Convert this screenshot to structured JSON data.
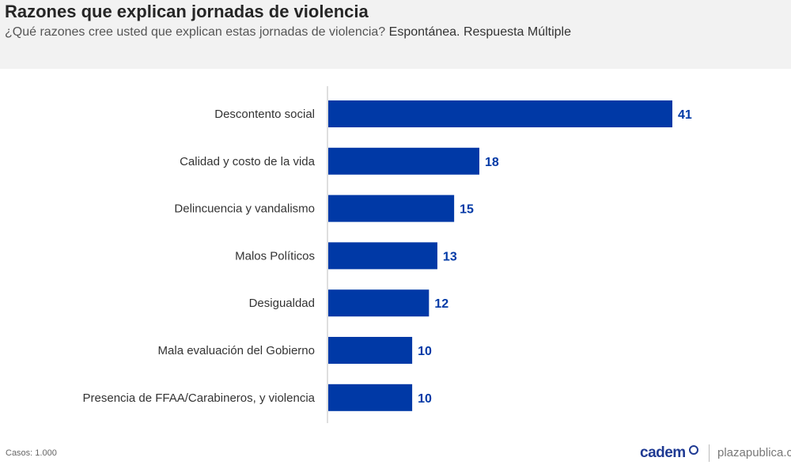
{
  "header": {
    "title": "Razones que explican jornadas de violencia",
    "subtitle_question": "¿Qué razones cree usted que explican estas jornadas de violencia?",
    "subtitle_note": "Espontánea. Respuesta Múltiple"
  },
  "footer": {
    "cases": "Casos: 1.000",
    "logo": "cadem",
    "site": "plazapublica.cl"
  },
  "colors": {
    "bar": "#0039a6",
    "label": "#0039a6"
  },
  "chart_data": {
    "type": "bar",
    "orientation": "horizontal",
    "title": "Razones que explican jornadas de violencia",
    "categories": [
      "Descontento social",
      "Calidad y costo de la vida",
      "Delincuencia y vandalismo",
      "Malos Políticos",
      "Desigualdad",
      "Mala evaluación del Gobierno",
      "Presencia de FFAA/Carabineros, y violencia"
    ],
    "values": [
      41,
      18,
      15,
      13,
      12,
      10,
      10
    ],
    "xlim": [
      0,
      41
    ],
    "xlabel": "",
    "ylabel": "",
    "grid": false
  }
}
